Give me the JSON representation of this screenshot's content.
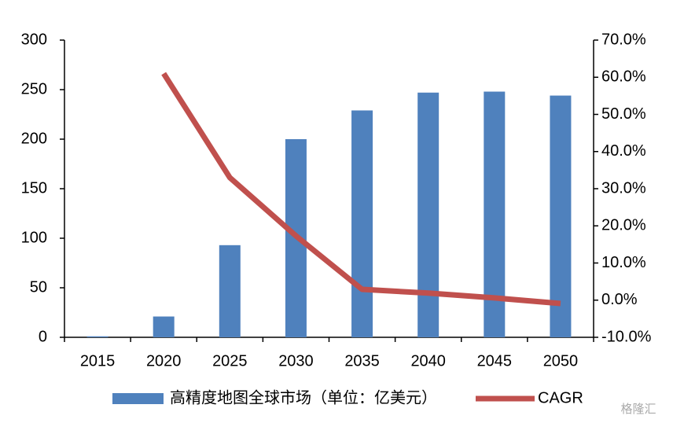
{
  "chart_data": {
    "type": "bar-line",
    "categories": [
      "2015",
      "2020",
      "2025",
      "2030",
      "2035",
      "2040",
      "2045",
      "2050"
    ],
    "series": [
      {
        "name": "高精度地图全球市场（单位：亿美元）",
        "type": "bar",
        "color": "#4f81bd",
        "values": [
          1,
          21,
          93,
          200,
          229,
          247,
          248,
          244
        ]
      },
      {
        "name": "CAGR",
        "type": "line",
        "axis": "y2",
        "color": "#c0504d",
        "values": [
          null,
          61,
          33,
          17.3,
          2.9,
          1.9,
          0.6,
          -0.9
        ]
      }
    ],
    "ylim": [
      0,
      300
    ],
    "yticks": [
      0,
      50,
      100,
      150,
      200,
      250,
      300
    ],
    "y2lim": [
      -10,
      70
    ],
    "y2ticks": [
      {
        "value": -10,
        "label": "-10.0%"
      },
      {
        "value": 0,
        "label": "0.0%"
      },
      {
        "value": 10,
        "label": "10.0%"
      },
      {
        "value": 20,
        "label": "20.0%"
      },
      {
        "value": 30,
        "label": "30.0%"
      },
      {
        "value": 40,
        "label": "40.0%"
      },
      {
        "value": 50,
        "label": "50.0%"
      },
      {
        "value": 60,
        "label": "60.0%"
      },
      {
        "value": 70,
        "label": "70.0%"
      }
    ],
    "legend": "bottom",
    "watermark": "格隆汇"
  }
}
